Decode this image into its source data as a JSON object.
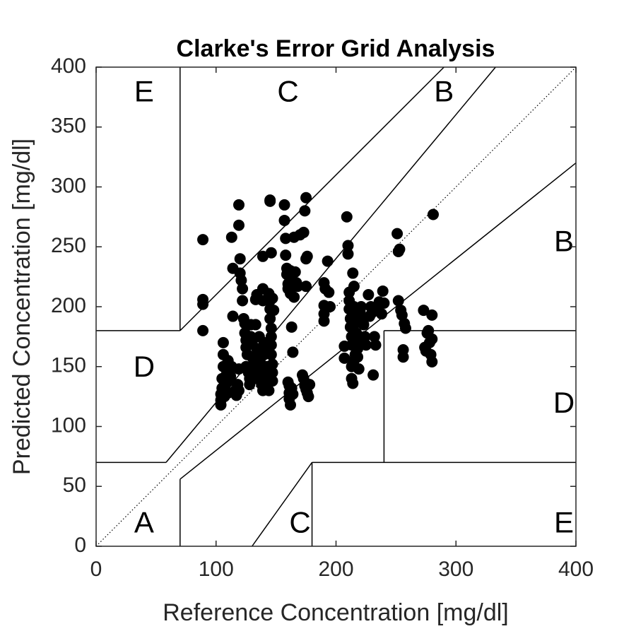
{
  "chart_data": {
    "type": "scatter",
    "title": "Clarke's Error Grid Analysis",
    "xlabel": "Reference Concentration [mg/dl]",
    "ylabel": "Predicted Concentration [mg/dl]",
    "xlim": [
      0,
      400
    ],
    "ylim": [
      0,
      400
    ],
    "xticks": [
      "0",
      "100",
      "200",
      "300",
      "400"
    ],
    "yticks": [
      "0",
      "50",
      "100",
      "150",
      "200",
      "250",
      "300",
      "350",
      "400"
    ],
    "grid": false,
    "marker_color": "#000000",
    "zone_labels": [
      {
        "text": "E",
        "x": 40,
        "y": 378
      },
      {
        "text": "C",
        "x": 160,
        "y": 378
      },
      {
        "text": "B",
        "x": 290,
        "y": 378
      },
      {
        "text": "B",
        "x": 390,
        "y": 253
      },
      {
        "text": "D",
        "x": 40,
        "y": 148
      },
      {
        "text": "D",
        "x": 390,
        "y": 118
      },
      {
        "text": "A",
        "x": 40,
        "y": 18
      },
      {
        "text": "C",
        "x": 170,
        "y": 18
      },
      {
        "text": "E",
        "x": 390,
        "y": 18
      }
    ],
    "zone_lines": [
      [
        [
          70,
          400
        ],
        [
          70,
          180
        ]
      ],
      [
        [
          0,
          180
        ],
        [
          70,
          180
        ]
      ],
      [
        [
          70,
          180
        ],
        [
          290,
          400
        ]
      ],
      [
        [
          0,
          70
        ],
        [
          58.3,
          70
        ]
      ],
      [
        [
          58.3,
          70
        ],
        [
          70,
          84
        ]
      ],
      [
        [
          70,
          84
        ],
        [
          333,
          400
        ]
      ],
      [
        [
          70,
          0
        ],
        [
          70,
          56
        ]
      ],
      [
        [
          70,
          56
        ],
        [
          400,
          320
        ]
      ],
      [
        [
          130,
          0
        ],
        [
          180,
          70
        ]
      ],
      [
        [
          180,
          0
        ],
        [
          180,
          70
        ]
      ],
      [
        [
          180,
          70
        ],
        [
          400,
          70
        ]
      ],
      [
        [
          240,
          70
        ],
        [
          240,
          180
        ]
      ],
      [
        [
          240,
          180
        ],
        [
          400,
          180
        ]
      ]
    ],
    "identity_line": [
      [
        0,
        0
      ],
      [
        400,
        400
      ]
    ],
    "points": [
      [
        89,
        256
      ],
      [
        89,
        206
      ],
      [
        89,
        202
      ],
      [
        89,
        180
      ],
      [
        104,
        127
      ],
      [
        104,
        122
      ],
      [
        104,
        118
      ],
      [
        105,
        132
      ],
      [
        105,
        140
      ],
      [
        106,
        150
      ],
      [
        106,
        160
      ],
      [
        106,
        170
      ],
      [
        107,
        125
      ],
      [
        108,
        135
      ],
      [
        109,
        145
      ],
      [
        110,
        128
      ],
      [
        110,
        155
      ],
      [
        111,
        138
      ],
      [
        112,
        142
      ],
      [
        113,
        150
      ],
      [
        113,
        258
      ],
      [
        114,
        232
      ],
      [
        114,
        192
      ],
      [
        116,
        130
      ],
      [
        117,
        126
      ],
      [
        118,
        135
      ],
      [
        119,
        130
      ],
      [
        119,
        148
      ],
      [
        119,
        285
      ],
      [
        119,
        268
      ],
      [
        120,
        240
      ],
      [
        120,
        228
      ],
      [
        121,
        222
      ],
      [
        122,
        215
      ],
      [
        122,
        205
      ],
      [
        123,
        190
      ],
      [
        124,
        186
      ],
      [
        124,
        178
      ],
      [
        125,
        172
      ],
      [
        125,
        166
      ],
      [
        125,
        150
      ],
      [
        126,
        160
      ],
      [
        127,
        145
      ],
      [
        128,
        140
      ],
      [
        128,
        135
      ],
      [
        129,
        185
      ],
      [
        129,
        175
      ],
      [
        130,
        170
      ],
      [
        130,
        158
      ],
      [
        131,
        152
      ],
      [
        131,
        146
      ],
      [
        132,
        140
      ],
      [
        133,
        185
      ],
      [
        133,
        206
      ],
      [
        134,
        210
      ],
      [
        134,
        165
      ],
      [
        135,
        155
      ],
      [
        135,
        148
      ],
      [
        136,
        175
      ],
      [
        136,
        162
      ],
      [
        137,
        157
      ],
      [
        137,
        152
      ],
      [
        137,
        145
      ],
      [
        138,
        140
      ],
      [
        138,
        135
      ],
      [
        139,
        130
      ],
      [
        139,
        205
      ],
      [
        139,
        215
      ],
      [
        139,
        242
      ],
      [
        140,
        170
      ],
      [
        140,
        160
      ],
      [
        141,
        150
      ],
      [
        141,
        143
      ],
      [
        142,
        138
      ],
      [
        143,
        165
      ],
      [
        143,
        150
      ],
      [
        143,
        136
      ],
      [
        144,
        130
      ],
      [
        144,
        211
      ],
      [
        145,
        205
      ],
      [
        145,
        198
      ],
      [
        145,
        190
      ],
      [
        146,
        182
      ],
      [
        146,
        175
      ],
      [
        146,
        168
      ],
      [
        146,
        160
      ],
      [
        147,
        152
      ],
      [
        147,
        145
      ],
      [
        147,
        138
      ],
      [
        145,
        288
      ],
      [
        145,
        289
      ],
      [
        146,
        245
      ],
      [
        147,
        207
      ],
      [
        148,
        197
      ],
      [
        157,
        285
      ],
      [
        157,
        272
      ],
      [
        158,
        257
      ],
      [
        158,
        243
      ],
      [
        159,
        232
      ],
      [
        159,
        227
      ],
      [
        160,
        219
      ],
      [
        160,
        215
      ],
      [
        161,
        225
      ],
      [
        162,
        230
      ],
      [
        162,
        211
      ],
      [
        163,
        183
      ],
      [
        164,
        162
      ],
      [
        160,
        137
      ],
      [
        161,
        134
      ],
      [
        161,
        128
      ],
      [
        161,
        123
      ],
      [
        162,
        118
      ],
      [
        163,
        132
      ],
      [
        164,
        127
      ],
      [
        165,
        208
      ],
      [
        165,
        258
      ],
      [
        166,
        229
      ],
      [
        167,
        220
      ],
      [
        168,
        217
      ],
      [
        170,
        260
      ],
      [
        172,
        143
      ],
      [
        173,
        140
      ],
      [
        174,
        134
      ],
      [
        175,
        131
      ],
      [
        176,
        128
      ],
      [
        177,
        125
      ],
      [
        178,
        135
      ],
      [
        175,
        240
      ],
      [
        176,
        242
      ],
      [
        173,
        262
      ],
      [
        174,
        280
      ],
      [
        175,
        291
      ],
      [
        175,
        217
      ],
      [
        190,
        220
      ],
      [
        190,
        201
      ],
      [
        190,
        194
      ],
      [
        190,
        188
      ],
      [
        191,
        215
      ],
      [
        193,
        238
      ],
      [
        194,
        212
      ],
      [
        195,
        200
      ],
      [
        207,
        167
      ],
      [
        207,
        157
      ],
      [
        209,
        275
      ],
      [
        210,
        251
      ],
      [
        210,
        244
      ],
      [
        211,
        212
      ],
      [
        211,
        205
      ],
      [
        211,
        198
      ],
      [
        212,
        190
      ],
      [
        212,
        183
      ],
      [
        213,
        175
      ],
      [
        213,
        168
      ],
      [
        213,
        150
      ],
      [
        214,
        228
      ],
      [
        215,
        217
      ],
      [
        215,
        200
      ],
      [
        216,
        192
      ],
      [
        216,
        186
      ],
      [
        217,
        178
      ],
      [
        218,
        172
      ],
      [
        218,
        165
      ],
      [
        218,
        158
      ],
      [
        219,
        148
      ],
      [
        220,
        196
      ],
      [
        221,
        200
      ],
      [
        222,
        190
      ],
      [
        223,
        185
      ],
      [
        224,
        175
      ],
      [
        225,
        168
      ],
      [
        227,
        210
      ],
      [
        228,
        192
      ],
      [
        229,
        200
      ],
      [
        230,
        195
      ],
      [
        231,
        143
      ],
      [
        232,
        175
      ],
      [
        233,
        168
      ],
      [
        234,
        198
      ],
      [
        236,
        204
      ],
      [
        238,
        194
      ],
      [
        239,
        213
      ],
      [
        240,
        203
      ],
      [
        213,
        140
      ],
      [
        214,
        136
      ],
      [
        215,
        155
      ],
      [
        216,
        160
      ],
      [
        251,
        261
      ],
      [
        252,
        246
      ],
      [
        253,
        248
      ],
      [
        252,
        205
      ],
      [
        254,
        197
      ],
      [
        255,
        193
      ],
      [
        256,
        164
      ],
      [
        256,
        158
      ],
      [
        257,
        186
      ],
      [
        258,
        182
      ],
      [
        273,
        197
      ],
      [
        274,
        166
      ],
      [
        275,
        163
      ],
      [
        276,
        178
      ],
      [
        277,
        180
      ],
      [
        278,
        170
      ],
      [
        279,
        160
      ],
      [
        280,
        154
      ],
      [
        280,
        193
      ],
      [
        280,
        173
      ],
      [
        281,
        277
      ]
    ]
  }
}
